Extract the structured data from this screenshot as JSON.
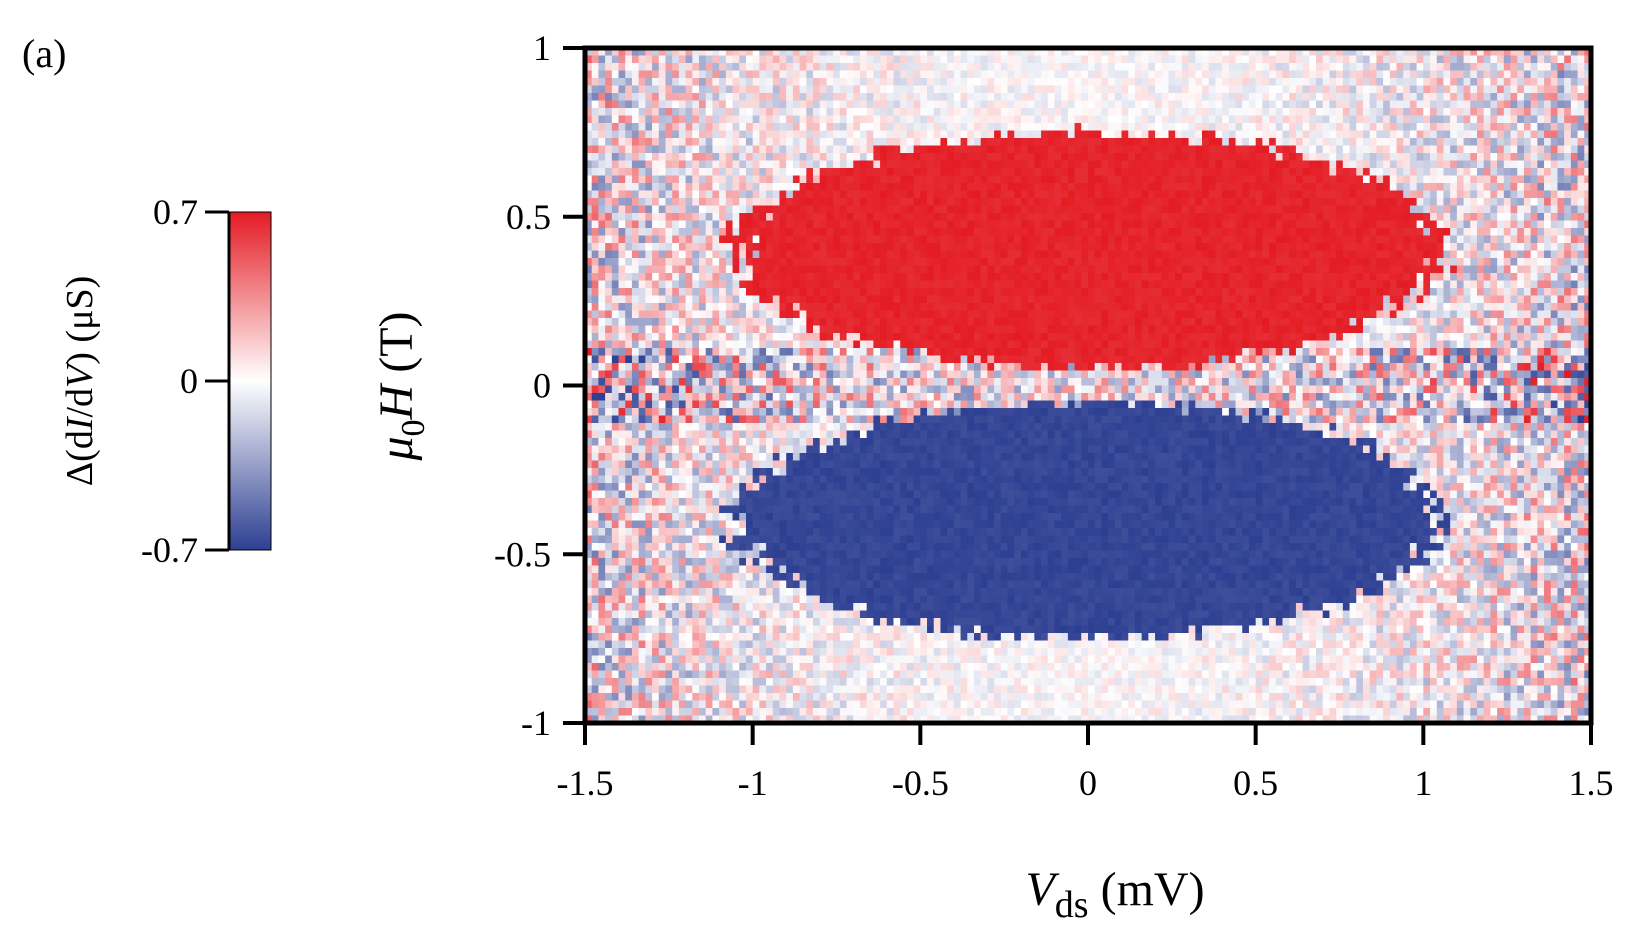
{
  "panel_label": "(a)",
  "chart_data": {
    "type": "heatmap",
    "x": {
      "label_main": "V",
      "label_sub": "ds",
      "label_unit": " (mV)",
      "range": [
        -1.5,
        1.5
      ],
      "ticks": [
        "-1.5",
        "-1",
        "-0.5",
        "0",
        "0.5",
        "1",
        "1.5"
      ],
      "tick_values": [
        -1.5,
        -1,
        -0.5,
        0,
        0.5,
        1,
        1.5
      ]
    },
    "y": {
      "label_main": "μ",
      "label_sub": "0",
      "label_var": "H",
      "label_unit": " (T)",
      "range": [
        -1,
        1
      ],
      "ticks": [
        "-1",
        "-0.5",
        "0",
        "0.5",
        "1"
      ],
      "tick_values": [
        -1,
        -0.5,
        0,
        0.5,
        1
      ]
    },
    "colorbar": {
      "label": "Δ(dI/dV) (μS)",
      "label_parts": [
        "Δ(d",
        "I",
        "/d",
        "V",
        ") (μS)"
      ],
      "range": [
        -0.7,
        0.7
      ],
      "ticks": [
        "0.7",
        "0",
        "-0.7"
      ],
      "tick_values": [
        0.7,
        0,
        -0.7
      ],
      "colors": {
        "high": "#e41b23",
        "mid": "#ffffff",
        "low": "#2d3f92"
      }
    },
    "features": [
      {
        "sign": "positive",
        "value": 0.7,
        "v_range": [
          -1.05,
          1.05
        ],
        "h_range": [
          0.05,
          0.75
        ]
      },
      {
        "sign": "negative",
        "value": -0.7,
        "v_range": [
          -1.05,
          1.05
        ],
        "h_range": [
          -0.75,
          -0.05
        ]
      }
    ],
    "grid": false
  }
}
